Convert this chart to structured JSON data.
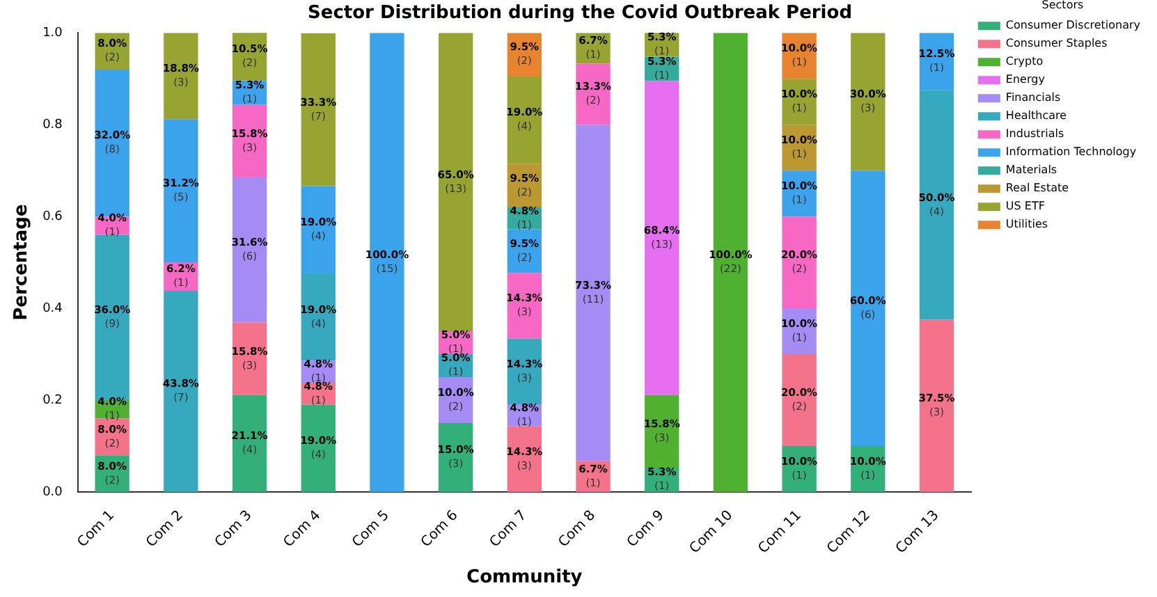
{
  "chart_data": {
    "type": "bar",
    "stacked": true,
    "title": "Sector Distribution during the Covid Outbreak Period",
    "xlabel": "Community",
    "ylabel": "Percentage",
    "legend_title": "Sectors",
    "legend": "right",
    "grid": false,
    "categories": [
      "Com 1",
      "Com 2",
      "Com 3",
      "Com 4",
      "Com 5",
      "Com 6",
      "Com 7",
      "Com 8",
      "Com 9",
      "Com 10",
      "Com 11",
      "Com 12",
      "Com 13"
    ],
    "ylim": [
      0,
      1
    ],
    "yticks": [
      {
        "value": 0,
        "label": "0.0"
      },
      {
        "value": 0.2,
        "label": "0.2"
      },
      {
        "value": 0.4,
        "label": "0.4"
      },
      {
        "value": 0.6,
        "label": "0.6"
      },
      {
        "value": 0.8,
        "label": "0.8"
      },
      {
        "value": 1,
        "label": "1.0"
      }
    ],
    "series": [
      {
        "name": "Consumer Discretionary",
        "color": "#33b07a",
        "values": [
          0.08,
          null,
          0.211,
          0.19,
          null,
          0.15,
          null,
          null,
          0.053,
          null,
          0.1,
          0.1,
          null
        ],
        "value_labels": [
          "8.0%\n(2)",
          null,
          "21.1%\n(4)",
          "19.0%\n(4)",
          null,
          "15.0%\n(3)",
          null,
          null,
          "5.3%\n(1)",
          null,
          "10.0%\n(1)",
          "10.0%\n(1)",
          null
        ]
      },
      {
        "name": "Consumer Staples",
        "color": "#f5738a",
        "values": [
          0.08,
          null,
          0.158,
          0.048,
          null,
          null,
          0.143,
          0.067,
          null,
          null,
          0.2,
          null,
          0.375
        ],
        "value_labels": [
          "8.0%\n(2)",
          null,
          "15.8%\n(3)",
          "4.8%\n(1)",
          null,
          null,
          "14.3%\n(3)",
          "6.7%\n(1)",
          null,
          null,
          "20.0%\n(2)",
          null,
          "37.5%\n(3)"
        ]
      },
      {
        "name": "Crypto",
        "color": "#50b131",
        "values": [
          0.04,
          null,
          null,
          null,
          null,
          null,
          null,
          null,
          0.158,
          1.0,
          null,
          null,
          null
        ],
        "value_labels": [
          "4.0%\n(1)",
          null,
          null,
          null,
          null,
          null,
          null,
          null,
          "15.8%\n(3)",
          "100.0%\n(22)",
          null,
          null,
          null
        ]
      },
      {
        "name": "Energy",
        "color": "#e56ef0",
        "values": [
          null,
          null,
          null,
          null,
          null,
          null,
          null,
          null,
          0.684,
          null,
          null,
          null,
          null
        ],
        "value_labels": [
          null,
          null,
          null,
          null,
          null,
          null,
          null,
          null,
          "68.4%\n(13)",
          null,
          null,
          null,
          null
        ]
      },
      {
        "name": "Financials",
        "color": "#a48cf4",
        "values": [
          null,
          null,
          0.316,
          0.048,
          null,
          0.1,
          0.048,
          0.733,
          null,
          null,
          0.1,
          null,
          null
        ],
        "value_labels": [
          null,
          null,
          "31.6%\n(6)",
          "4.8%\n(1)",
          null,
          "10.0%\n(2)",
          "4.8%\n(1)",
          "73.3%\n(11)",
          null,
          null,
          "10.0%\n(1)",
          null,
          null
        ]
      },
      {
        "name": "Healthcare",
        "color": "#36a9bf",
        "values": [
          0.36,
          0.438,
          null,
          0.19,
          null,
          0.05,
          0.143,
          null,
          null,
          null,
          null,
          null,
          0.5
        ],
        "value_labels": [
          "36.0%\n(9)",
          "43.8%\n(7)",
          null,
          "19.0%\n(4)",
          null,
          "5.0%\n(1)",
          "14.3%\n(3)",
          null,
          null,
          null,
          null,
          null,
          "50.0%\n(4)"
        ]
      },
      {
        "name": "Industrials",
        "color": "#f668c4",
        "values": [
          0.04,
          0.062,
          0.158,
          null,
          null,
          0.05,
          0.143,
          0.133,
          null,
          null,
          0.2,
          null,
          null
        ],
        "value_labels": [
          "4.0%\n(1)",
          "6.2%\n(1)",
          "15.8%\n(3)",
          null,
          null,
          "5.0%\n(1)",
          "14.3%\n(3)",
          "13.3%\n(2)",
          null,
          null,
          "20.0%\n(2)",
          null,
          null
        ]
      },
      {
        "name": "Information Technology",
        "color": "#3ba3ec",
        "values": [
          0.32,
          0.312,
          0.053,
          0.19,
          1.0,
          null,
          0.095,
          null,
          null,
          null,
          0.1,
          0.6,
          0.125
        ],
        "value_labels": [
          "32.0%\n(8)",
          "31.2%\n(5)",
          "5.3%\n(1)",
          "19.0%\n(4)",
          "100.0%\n(15)",
          null,
          "9.5%\n(2)",
          null,
          null,
          null,
          "10.0%\n(1)",
          "60.0%\n(6)",
          "12.5%\n(1)"
        ]
      },
      {
        "name": "Materials",
        "color": "#35ab9d",
        "values": [
          null,
          null,
          null,
          null,
          null,
          null,
          0.048,
          null,
          0.053,
          null,
          null,
          null,
          null
        ],
        "value_labels": [
          null,
          null,
          null,
          null,
          null,
          null,
          "4.8%\n(1)",
          null,
          "5.3%\n(1)",
          null,
          null,
          null,
          null
        ]
      },
      {
        "name": "Real Estate",
        "color": "#bb9832",
        "values": [
          null,
          null,
          null,
          null,
          null,
          null,
          0.095,
          null,
          null,
          null,
          0.1,
          null,
          null
        ],
        "value_labels": [
          null,
          null,
          null,
          null,
          null,
          null,
          "9.5%\n(2)",
          null,
          null,
          null,
          "10.0%\n(1)",
          null,
          null
        ]
      },
      {
        "name": "US ETF",
        "color": "#97a431",
        "values": [
          0.08,
          0.188,
          0.105,
          0.333,
          null,
          0.65,
          0.19,
          0.067,
          0.053,
          null,
          0.1,
          0.3,
          null
        ],
        "value_labels": [
          "8.0%\n(2)",
          "18.8%\n(3)",
          "10.5%\n(2)",
          "33.3%\n(7)",
          null,
          "65.0%\n(13)",
          "19.0%\n(4)",
          "6.7%\n(1)",
          "5.3%\n(1)",
          null,
          "10.0%\n(1)",
          "30.0%\n(3)",
          null
        ]
      },
      {
        "name": "Utilities",
        "color": "#e8832f",
        "values": [
          null,
          null,
          null,
          null,
          null,
          null,
          0.095,
          null,
          null,
          null,
          0.1,
          null,
          null
        ],
        "value_labels": [
          null,
          null,
          null,
          null,
          null,
          null,
          "9.5%\n(2)",
          null,
          null,
          null,
          "10.0%\n(1)",
          null,
          null
        ]
      }
    ]
  }
}
